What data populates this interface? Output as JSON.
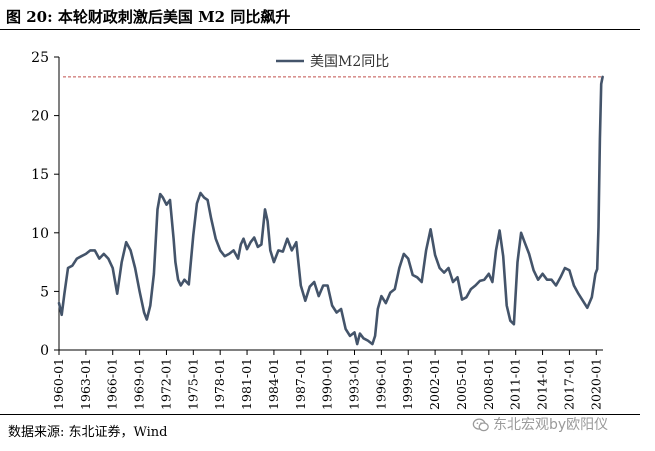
{
  "header": {
    "title": "图 20:  本轮财政刺激后美国 M2 同比飙升"
  },
  "footer": {
    "source": "数据来源:  东北证券，Wind",
    "watermark": "东北宏观by欧阳仪"
  },
  "chart_data": {
    "type": "line",
    "title": "本轮财政刺激后美国 M2 同比飙升",
    "xlabel": "",
    "ylabel": "",
    "ylim": [
      0,
      25
    ],
    "yticks": [
      0,
      5,
      10,
      15,
      20,
      25
    ],
    "xlim": [
      1960,
      2020.75
    ],
    "xtick_labels": [
      "1960-01",
      "1963-01",
      "1966-01",
      "1969-01",
      "1972-01",
      "1975-01",
      "1978-01",
      "1981-01",
      "1984-01",
      "1987-01",
      "1990-01",
      "1993-01",
      "1996-01",
      "1999-01",
      "2002-01",
      "2005-01",
      "2008-01",
      "2011-01",
      "2014-01",
      "2017-01",
      "2020-01"
    ],
    "xtick_years": [
      1960,
      1963,
      1966,
      1969,
      1972,
      1975,
      1978,
      1981,
      1984,
      1987,
      1990,
      1993,
      1996,
      1999,
      2002,
      2005,
      2008,
      2011,
      2014,
      2017,
      2020
    ],
    "reference_line": {
      "value": 23.3,
      "style": "dashed",
      "color": "#c0504d"
    },
    "legend": {
      "position": "top-center"
    },
    "series": [
      {
        "name": "美国M2同比",
        "color": "#44546a",
        "x": [
          1960.0,
          1960.3,
          1960.6,
          1961.0,
          1961.5,
          1962.0,
          1962.5,
          1963.0,
          1963.5,
          1964.0,
          1964.5,
          1965.0,
          1965.5,
          1966.0,
          1966.5,
          1967.0,
          1967.5,
          1968.0,
          1968.5,
          1969.0,
          1969.5,
          1969.8,
          1970.2,
          1970.6,
          1971.0,
          1971.3,
          1971.6,
          1972.0,
          1972.4,
          1972.8,
          1973.0,
          1973.3,
          1973.6,
          1974.0,
          1974.5,
          1975.0,
          1975.4,
          1975.8,
          1976.2,
          1976.6,
          1977.0,
          1977.5,
          1978.0,
          1978.5,
          1979.0,
          1979.5,
          1980.0,
          1980.3,
          1980.6,
          1981.0,
          1981.4,
          1981.8,
          1982.2,
          1982.6,
          1983.0,
          1983.3,
          1983.6,
          1984.0,
          1984.5,
          1985.0,
          1985.5,
          1986.0,
          1986.5,
          1987.0,
          1987.5,
          1988.0,
          1988.5,
          1989.0,
          1989.5,
          1990.0,
          1990.5,
          1991.0,
          1991.5,
          1992.0,
          1992.5,
          1993.0,
          1993.3,
          1993.6,
          1994.0,
          1994.5,
          1995.0,
          1995.3,
          1995.6,
          1996.0,
          1996.5,
          1997.0,
          1997.5,
          1998.0,
          1998.5,
          1999.0,
          1999.5,
          2000.0,
          2000.5,
          2001.0,
          2001.5,
          2002.0,
          2002.5,
          2003.0,
          2003.5,
          2004.0,
          2004.5,
          2005.0,
          2005.5,
          2006.0,
          2006.5,
          2007.0,
          2007.5,
          2008.0,
          2008.4,
          2008.8,
          2009.2,
          2009.6,
          2010.0,
          2010.4,
          2010.8,
          2011.2,
          2011.6,
          2012.0,
          2012.5,
          2013.0,
          2013.5,
          2014.0,
          2014.5,
          2015.0,
          2015.5,
          2016.0,
          2016.5,
          2017.0,
          2017.5,
          2018.0,
          2018.5,
          2019.0,
          2019.5,
          2019.9,
          2020.1,
          2020.25,
          2020.4,
          2020.55,
          2020.7
        ],
        "values": [
          4.0,
          3.0,
          4.8,
          7.0,
          7.2,
          7.8,
          8.0,
          8.2,
          8.5,
          8.5,
          7.8,
          8.2,
          7.8,
          7.0,
          4.8,
          7.5,
          9.2,
          8.5,
          7.0,
          5.0,
          3.2,
          2.6,
          3.8,
          6.5,
          12.0,
          13.3,
          13.0,
          12.4,
          12.8,
          9.5,
          7.5,
          6.0,
          5.5,
          6.0,
          5.6,
          9.8,
          12.5,
          13.4,
          13.0,
          12.8,
          11.2,
          9.5,
          8.5,
          8.0,
          8.2,
          8.5,
          7.8,
          9.0,
          9.5,
          8.6,
          9.2,
          9.6,
          8.8,
          9.0,
          12.0,
          11.0,
          8.5,
          7.5,
          8.5,
          8.4,
          9.5,
          8.5,
          9.2,
          5.5,
          4.2,
          5.4,
          5.8,
          4.6,
          5.5,
          5.5,
          3.8,
          3.2,
          3.5,
          1.8,
          1.2,
          1.5,
          0.5,
          1.4,
          1.0,
          0.8,
          0.5,
          1.2,
          3.5,
          4.6,
          4.0,
          4.9,
          5.2,
          7.0,
          8.2,
          7.8,
          6.4,
          6.2,
          5.8,
          8.5,
          10.3,
          8.1,
          7.0,
          6.6,
          7.0,
          5.8,
          6.2,
          4.3,
          4.5,
          5.2,
          5.5,
          5.9,
          6.0,
          6.5,
          5.8,
          8.5,
          10.2,
          8.0,
          3.8,
          2.5,
          2.2,
          7.5,
          10.0,
          9.2,
          8.2,
          6.8,
          6.0,
          6.5,
          6.0,
          6.0,
          5.5,
          6.2,
          7.0,
          6.8,
          5.5,
          4.8,
          4.2,
          3.6,
          4.5,
          6.5,
          6.9,
          10.5,
          18.0,
          22.7,
          23.3
        ]
      }
    ]
  }
}
